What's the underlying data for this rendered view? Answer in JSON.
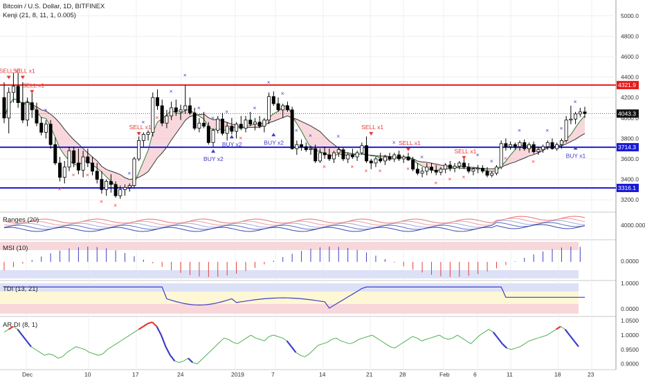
{
  "header": {
    "title": "Bitcoin / U.S. Dollar, 1D, BITFINEX",
    "indicator": "Kenji (21, 8, 11, 1, 0.005)"
  },
  "panes": {
    "ranges_label": "Ranges (20)",
    "msi_label": "MSI (10)",
    "tdi_label": "TDI (13, 21)",
    "ardi_label": "AR DI (8, 1)"
  },
  "colors": {
    "up_candle": "#ffffff",
    "down_candle": "#000000",
    "sell": "#e53935",
    "buy": "#3d3dc8",
    "support_line": "#1a1ad6",
    "resistance_line": "#e31a1a",
    "cloud": "#f2b8c0",
    "cloud_blue": "#c8cdf0"
  },
  "chart_data": [
    {
      "type": "candlestick",
      "name": "price",
      "y_ticks": [
        "5000.0",
        "4800.0",
        "4600.0",
        "4400.0",
        "4200.0",
        "4000.0",
        "3800.0",
        "3600.0",
        "3400.0",
        "3200.0"
      ],
      "ylim": [
        3100,
        5100
      ],
      "x_labels": [
        "Dec",
        "10",
        "17",
        "24",
        "2019",
        "7",
        "14",
        "21",
        "28",
        "Feb",
        "6",
        "11",
        "18",
        "23"
      ],
      "levels": [
        {
          "value": 4321.9,
          "label": "4321.9",
          "color": "#e31a1a"
        },
        {
          "value": 3714.3,
          "label": "3714.3",
          "color": "#1a1ad6"
        },
        {
          "value": 3316.1,
          "label": "3316.1",
          "color": "#1a1ad6"
        }
      ],
      "last_price": {
        "value": 4043.3,
        "label": "4043.3"
      },
      "signal_labels": [
        {
          "text": "SELL x1",
          "kind": "sell",
          "index": 1,
          "value": 4440
        },
        {
          "text": "SELL x1",
          "kind": "sell",
          "index": 4,
          "value": 4440
        },
        {
          "text": "SELL x1",
          "kind": "sell",
          "index": 6,
          "value": 4300
        },
        {
          "text": "SELL x1",
          "kind": "sell",
          "index": 29,
          "value": 3890
        },
        {
          "text": "SELL x1",
          "kind": "sell",
          "index": 79,
          "value": 3890
        },
        {
          "text": "SELL x1",
          "kind": "sell",
          "index": 87,
          "value": 3735
        },
        {
          "text": "SELL x1",
          "kind": "sell",
          "index": 99,
          "value": 3655
        },
        {
          "text": "BUY x2",
          "kind": "buy",
          "index": 45,
          "value": 3580
        },
        {
          "text": "BUY x2",
          "kind": "buy",
          "index": 49,
          "value": 3720
        },
        {
          "text": "BUY x2",
          "kind": "buy",
          "index": 58,
          "value": 3740
        },
        {
          "text": "BUY x1",
          "kind": "buy",
          "index": 123,
          "value": 3610
        }
      ],
      "candles": [
        [
          4200,
          4350,
          3950,
          4000
        ],
        [
          4000,
          4300,
          3850,
          4250
        ],
        [
          4250,
          4440,
          4150,
          4310
        ],
        [
          4310,
          4440,
          4100,
          4150
        ],
        [
          4150,
          4350,
          3950,
          3980
        ],
        [
          3980,
          4200,
          3920,
          4150
        ],
        [
          4150,
          4260,
          4000,
          4080
        ],
        [
          4080,
          4150,
          3920,
          3950
        ],
        [
          3950,
          4010,
          3830,
          3860
        ],
        [
          3860,
          3980,
          3800,
          3940
        ],
        [
          3940,
          3980,
          3700,
          3740
        ],
        [
          3740,
          3810,
          3540,
          3560
        ],
        [
          3560,
          3620,
          3380,
          3420
        ],
        [
          3420,
          3580,
          3360,
          3520
        ],
        [
          3520,
          3720,
          3480,
          3680
        ],
        [
          3680,
          3720,
          3520,
          3560
        ],
        [
          3560,
          3700,
          3450,
          3490
        ],
        [
          3490,
          3680,
          3420,
          3620
        ],
        [
          3620,
          3700,
          3520,
          3560
        ],
        [
          3560,
          3620,
          3440,
          3480
        ],
        [
          3480,
          3560,
          3360,
          3400
        ],
        [
          3400,
          3480,
          3260,
          3300
        ],
        [
          3300,
          3400,
          3240,
          3380
        ],
        [
          3380,
          3450,
          3270,
          3350
        ],
        [
          3350,
          3380,
          3220,
          3240
        ],
        [
          3240,
          3340,
          3210,
          3300
        ],
        [
          3300,
          3350,
          3240,
          3320
        ],
        [
          3320,
          3360,
          3280,
          3340
        ],
        [
          3340,
          3620,
          3320,
          3600
        ],
        [
          3600,
          3820,
          3580,
          3780
        ],
        [
          3780,
          3860,
          3720,
          3840
        ],
        [
          3840,
          3880,
          3780,
          3860
        ],
        [
          3860,
          4250,
          3820,
          4200
        ],
        [
          4200,
          4280,
          4080,
          4120
        ],
        [
          4120,
          4180,
          3920,
          3950
        ],
        [
          3950,
          4080,
          3900,
          4020
        ],
        [
          4020,
          4160,
          3980,
          4100
        ],
        [
          4100,
          4180,
          4020,
          4060
        ],
        [
          4060,
          4130,
          3980,
          4080
        ],
        [
          4080,
          4320,
          4040,
          4120
        ],
        [
          4120,
          4200,
          4030,
          4050
        ],
        [
          4050,
          4100,
          3880,
          3900
        ],
        [
          3900,
          4000,
          3860,
          3950
        ],
        [
          3950,
          4060,
          3900,
          3920
        ],
        [
          3920,
          3960,
          3740,
          3760
        ],
        [
          3760,
          3900,
          3720,
          3880
        ],
        [
          3880,
          4020,
          3850,
          3990
        ],
        [
          3990,
          4050,
          3830,
          3850
        ],
        [
          3850,
          3960,
          3780,
          3920
        ],
        [
          3920,
          4000,
          3840,
          3870
        ],
        [
          3870,
          3960,
          3800,
          3940
        ],
        [
          3940,
          4020,
          3880,
          3900
        ],
        [
          3900,
          4020,
          3860,
          3980
        ],
        [
          3980,
          4060,
          3920,
          3940
        ],
        [
          3940,
          4000,
          3880,
          3960
        ],
        [
          3960,
          4020,
          3900,
          3920
        ],
        [
          3920,
          4000,
          3860,
          3980
        ],
        [
          3980,
          4250,
          3940,
          4210
        ],
        [
          4210,
          4260,
          4120,
          4140
        ],
        [
          4140,
          4200,
          4060,
          4080
        ],
        [
          4080,
          4140,
          4000,
          4120
        ],
        [
          4120,
          4160,
          4060,
          4080
        ],
        [
          4080,
          4110,
          3690,
          3700
        ],
        [
          3700,
          3780,
          3640,
          3740
        ],
        [
          3740,
          3790,
          3680,
          3720
        ],
        [
          3720,
          3760,
          3670,
          3690
        ],
        [
          3690,
          3730,
          3640,
          3700
        ],
        [
          3700,
          3740,
          3560,
          3580
        ],
        [
          3580,
          3700,
          3560,
          3660
        ],
        [
          3660,
          3720,
          3600,
          3640
        ],
        [
          3640,
          3700,
          3580,
          3600
        ],
        [
          3600,
          3680,
          3560,
          3660
        ],
        [
          3660,
          3720,
          3620,
          3690
        ],
        [
          3690,
          3710,
          3580,
          3600
        ],
        [
          3600,
          3660,
          3560,
          3640
        ],
        [
          3640,
          3700,
          3600,
          3620
        ],
        [
          3620,
          3680,
          3580,
          3660
        ],
        [
          3660,
          3760,
          3640,
          3730
        ],
        [
          3730,
          3820,
          3560,
          3580
        ],
        [
          3580,
          3600,
          3500,
          3560
        ],
        [
          3560,
          3620,
          3520,
          3600
        ],
        [
          3600,
          3660,
          3560,
          3580
        ],
        [
          3580,
          3640,
          3540,
          3620
        ],
        [
          3620,
          3660,
          3580,
          3600
        ],
        [
          3600,
          3660,
          3570,
          3640
        ],
        [
          3640,
          3680,
          3580,
          3600
        ],
        [
          3600,
          3640,
          3560,
          3620
        ],
        [
          3620,
          3660,
          3580,
          3590
        ],
        [
          3590,
          3620,
          3480,
          3500
        ],
        [
          3500,
          3560,
          3440,
          3460
        ],
        [
          3460,
          3520,
          3420,
          3480
        ],
        [
          3480,
          3560,
          3440,
          3520
        ],
        [
          3520,
          3560,
          3460,
          3490
        ],
        [
          3490,
          3540,
          3440,
          3470
        ],
        [
          3470,
          3520,
          3440,
          3500
        ],
        [
          3500,
          3560,
          3460,
          3540
        ],
        [
          3540,
          3580,
          3480,
          3510
        ],
        [
          3510,
          3560,
          3470,
          3530
        ],
        [
          3530,
          3580,
          3500,
          3560
        ],
        [
          3560,
          3600,
          3500,
          3520
        ],
        [
          3520,
          3560,
          3460,
          3480
        ],
        [
          3480,
          3520,
          3440,
          3500
        ],
        [
          3500,
          3540,
          3460,
          3510
        ],
        [
          3510,
          3540,
          3460,
          3480
        ],
        [
          3480,
          3520,
          3420,
          3440
        ],
        [
          3440,
          3480,
          3420,
          3460
        ],
        [
          3460,
          3540,
          3440,
          3520
        ],
        [
          3520,
          3780,
          3500,
          3750
        ],
        [
          3750,
          3800,
          3680,
          3720
        ],
        [
          3720,
          3770,
          3690,
          3740
        ],
        [
          3740,
          3760,
          3690,
          3720
        ],
        [
          3720,
          3780,
          3680,
          3760
        ],
        [
          3760,
          3790,
          3680,
          3700
        ],
        [
          3700,
          3760,
          3660,
          3740
        ],
        [
          3740,
          3770,
          3650,
          3670
        ],
        [
          3670,
          3720,
          3640,
          3690
        ],
        [
          3690,
          3740,
          3660,
          3720
        ],
        [
          3720,
          3780,
          3690,
          3760
        ],
        [
          3760,
          3800,
          3690,
          3700
        ],
        [
          3700,
          3760,
          3680,
          3740
        ],
        [
          3740,
          3800,
          3700,
          3780
        ],
        [
          3780,
          4020,
          3760,
          3980
        ],
        [
          3980,
          4120,
          3940,
          3990
        ],
        [
          3990,
          4060,
          3940,
          4040
        ],
        [
          4040,
          4100,
          4010,
          4060
        ],
        [
          4060,
          4110,
          4000,
          4043.3
        ]
      ]
    },
    {
      "type": "line",
      "name": "Ranges (20)",
      "y_ticks": [
        "4000.0000"
      ]
    },
    {
      "type": "bar",
      "name": "MSI (10)",
      "y_ticks": [
        "0.0000"
      ]
    },
    {
      "type": "line",
      "name": "TDI (13, 21)",
      "y_ticks": [
        "1.0000",
        "0.0000"
      ]
    },
    {
      "type": "line",
      "name": "AR DI (8, 1)",
      "y_ticks": [
        "1.0500",
        "1.0000",
        "0.9500",
        "0.9000"
      ],
      "ylim": [
        0.885,
        1.06
      ],
      "values": [
        1.01,
        1.02,
        1.03,
        1.02,
        1.0,
        0.98,
        0.96,
        0.95,
        0.94,
        0.93,
        0.935,
        0.93,
        0.92,
        0.925,
        0.94,
        0.95,
        0.96,
        0.955,
        0.95,
        0.94,
        0.935,
        0.93,
        0.935,
        0.95,
        0.96,
        0.97,
        0.98,
        0.99,
        1.0,
        1.01,
        1.02,
        1.03,
        1.04,
        1.045,
        1.03,
        1.0,
        0.96,
        0.93,
        0.91,
        0.905,
        0.91,
        0.92,
        0.905,
        0.9,
        0.915,
        0.93,
        0.945,
        0.96,
        0.975,
        0.99,
        0.985,
        0.975,
        0.97,
        0.98,
        0.99,
        1.0,
        0.99,
        0.985,
        0.98,
        0.995,
        1.0,
        0.995,
        0.99,
        0.98,
        0.96,
        0.94,
        0.93,
        0.925,
        0.935,
        0.95,
        0.965,
        0.97,
        0.975,
        0.985,
        0.99,
        0.98,
        0.975,
        0.97,
        0.975,
        0.985,
        0.99,
        0.995,
        1.0,
        0.99,
        0.98,
        0.97,
        0.96,
        0.955,
        0.965,
        0.975,
        0.985,
        0.995,
        0.99,
        0.98,
        0.985,
        0.99,
        0.995,
        1.0,
        0.99,
        0.985,
        0.99,
        1.0,
        0.99,
        0.98,
        0.97,
        0.985,
        1.0,
        1.01,
        1.02,
        1.01,
        0.99,
        0.97,
        0.955,
        0.95,
        0.955,
        0.96,
        0.97,
        0.98,
        0.985,
        0.99,
        0.995,
        1.0,
        1.01,
        1.02,
        1.03,
        1.02,
        1.0,
        0.98,
        0.96
      ]
    }
  ]
}
